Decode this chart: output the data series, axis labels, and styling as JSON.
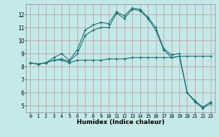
{
  "xlabel": "Humidex (Indice chaleur)",
  "background_color": "#c5e8e8",
  "grid_color": "#b0b0b0",
  "line_color": "#1a7070",
  "xlim": [
    -0.5,
    23.5
  ],
  "ylim": [
    4.5,
    12.8
  ],
  "yticks": [
    5,
    6,
    7,
    8,
    9,
    10,
    11,
    12
  ],
  "xticks": [
    0,
    1,
    2,
    3,
    4,
    5,
    6,
    7,
    8,
    9,
    10,
    11,
    12,
    13,
    14,
    15,
    16,
    17,
    18,
    19,
    20,
    21,
    22,
    23
  ],
  "series1_x": [
    0,
    1,
    2,
    3,
    4,
    5,
    6,
    7,
    8,
    9,
    10,
    11,
    12,
    13,
    14,
    15,
    16,
    17,
    18,
    19,
    20,
    21,
    22,
    23
  ],
  "series1_y": [
    8.3,
    8.2,
    8.3,
    8.5,
    8.5,
    8.3,
    8.5,
    8.5,
    8.5,
    8.5,
    8.6,
    8.6,
    8.6,
    8.7,
    8.7,
    8.7,
    8.7,
    8.7,
    8.7,
    8.8,
    8.8,
    8.8,
    8.8,
    8.8
  ],
  "series2_x": [
    0,
    1,
    2,
    3,
    4,
    5,
    6,
    7,
    8,
    9,
    10,
    11,
    12,
    13,
    14,
    15,
    16,
    17,
    18,
    19,
    20,
    21,
    22,
    23
  ],
  "series2_y": [
    8.3,
    8.2,
    8.3,
    8.5,
    8.6,
    8.4,
    9.0,
    10.4,
    10.8,
    11.0,
    11.0,
    12.1,
    11.7,
    12.4,
    12.3,
    11.7,
    10.8,
    9.3,
    8.7,
    8.8,
    6.0,
    5.3,
    4.8,
    5.2
  ],
  "series3_x": [
    0,
    1,
    2,
    3,
    4,
    5,
    6,
    7,
    8,
    9,
    10,
    11,
    12,
    13,
    14,
    15,
    16,
    17,
    18,
    19,
    20,
    21,
    22,
    23
  ],
  "series3_y": [
    8.3,
    8.2,
    8.3,
    8.7,
    9.0,
    8.5,
    9.3,
    10.8,
    11.2,
    11.4,
    11.3,
    12.2,
    11.9,
    12.5,
    12.4,
    11.8,
    11.0,
    9.4,
    8.9,
    9.0,
    6.0,
    5.4,
    4.9,
    5.3
  ],
  "xlabel_fontsize": 6.5,
  "tick_fontsize": 5.0
}
